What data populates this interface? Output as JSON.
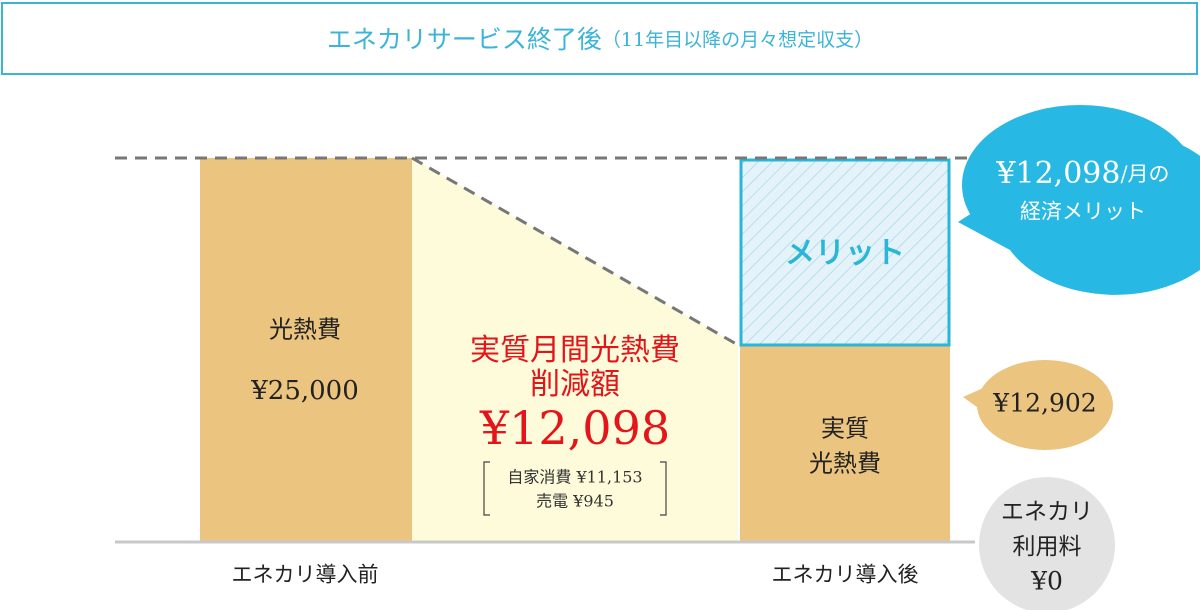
{
  "header": {
    "title": "エネカリサービス終了後",
    "subtitle": "（11年目以降の月々想定収支）"
  },
  "before": {
    "bar_label": "光熱費",
    "amount": "¥25,000",
    "axis_label": "エネカリ導入前"
  },
  "reduction": {
    "label_line1": "実質月間光熱費",
    "label_line2": "削減額",
    "amount": "¥12,098",
    "detail_line1": "自家消費 ¥11,153",
    "detail_line2": "売電 ¥945"
  },
  "after": {
    "merit_label": "メリット",
    "bar_label_line1": "実質",
    "bar_label_line2": "光熱費",
    "axis_label": "エネカリ導入後"
  },
  "callouts": {
    "merit_amount": "¥12,098",
    "merit_unit": "/月の",
    "merit_line2": "経済メリット",
    "net_cost": "¥12,902",
    "fee_line1": "エネカリ",
    "fee_line2": "利用料",
    "fee_amount": "¥0"
  }
}
